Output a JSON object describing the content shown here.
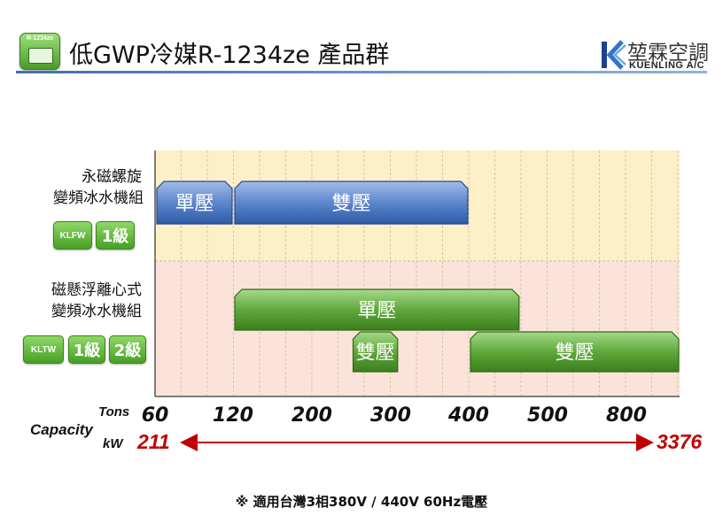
{
  "header": {
    "icon_label": "R-1234ze",
    "title": "低GWP冷媒R-1234ze 產品群",
    "logo_cn": "堃霖空調",
    "logo_en": "KUENLING A/C"
  },
  "groups": [
    {
      "label_lines": [
        "永磁螺旋",
        "變頻冰水機組"
      ],
      "model_badge": "KLFW",
      "grade_badges": [
        "1級"
      ]
    },
    {
      "label_lines": [
        "磁懸浮離心式",
        "變頻冰水機組"
      ],
      "model_badge": "KLTW",
      "grade_badges": [
        "1級",
        "2級"
      ]
    }
  ],
  "axis": {
    "capacity_label": "Capacity",
    "tons_label": "Tons",
    "kw_label": "kW",
    "kw_min": "211",
    "kw_max": "3376"
  },
  "footnote": "※ 適用台灣3相380V / 440V 60Hz電壓",
  "colors": {
    "top_band": "#fdf0c8",
    "bottom_band": "#fbe3da",
    "blue_bar": "#4a76c1",
    "green_bar": "#4f9a2e",
    "kw_text": "#c00000",
    "badge_green": "#55ab2c"
  },
  "chart_data": {
    "type": "range-bar",
    "x_ticks": [
      "60",
      "120",
      "200",
      "300",
      "400",
      "500",
      "800"
    ],
    "x_unit": "Tons",
    "rows": [
      {
        "group": 0,
        "bars": [
          {
            "label": "單壓",
            "start": 60,
            "end": 120,
            "color": "blue",
            "lane": 0
          },
          {
            "label": "雙壓",
            "start": 120,
            "end": 400,
            "color": "blue",
            "lane": 0
          }
        ]
      },
      {
        "group": 1,
        "bars": [
          {
            "label": "單壓",
            "start": 120,
            "end": 465,
            "color": "green",
            "lane": 0
          },
          {
            "label": "雙壓",
            "start": 250,
            "end": 310,
            "color": "green",
            "lane": 1
          },
          {
            "label": "雙壓",
            "start": 400,
            "end": 900,
            "color": "green",
            "lane": 1
          }
        ]
      }
    ]
  }
}
